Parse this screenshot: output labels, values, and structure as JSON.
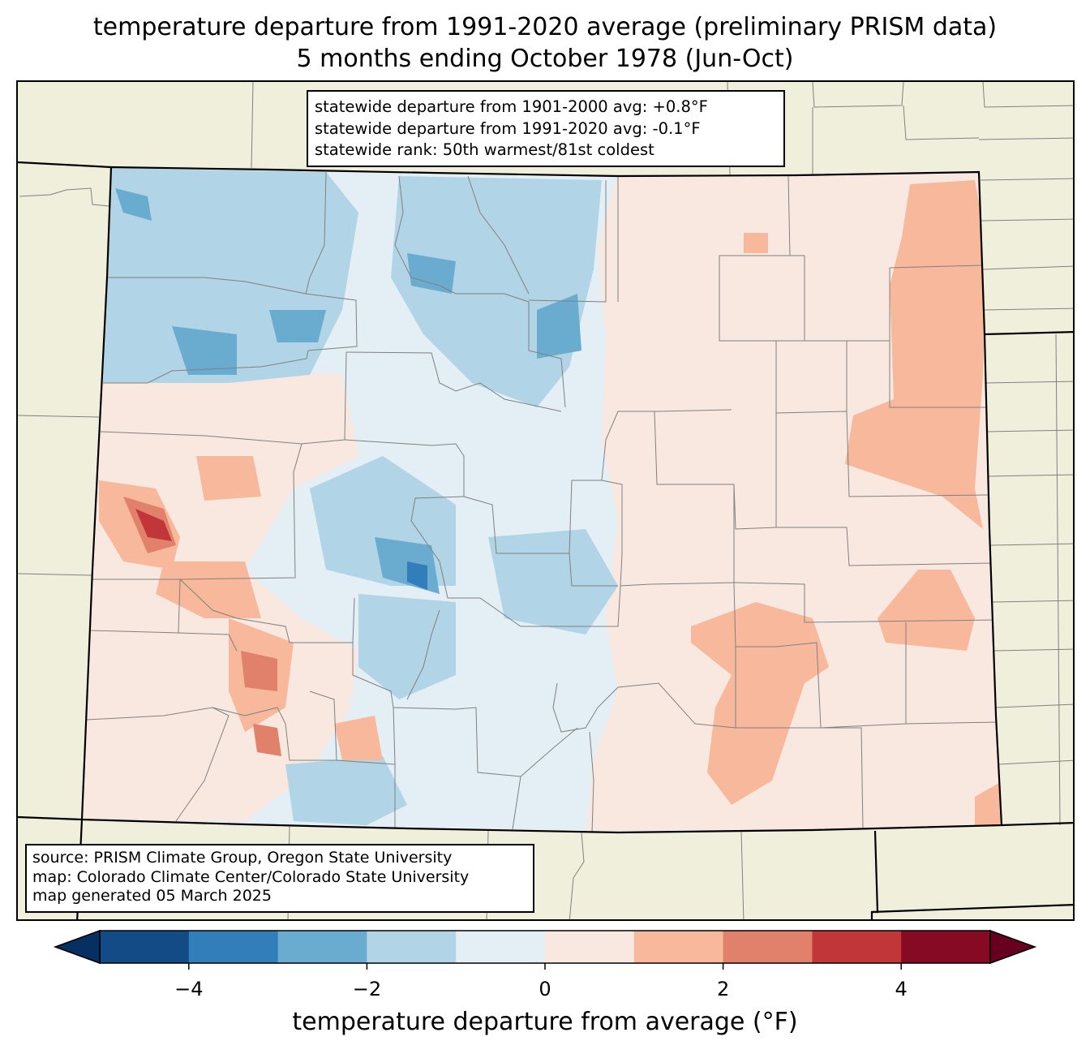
{
  "title": {
    "line1": "temperature departure from 1991-2020 average (preliminary PRISM data)",
    "line2": "5 months ending October 1978 (Jun-Oct)"
  },
  "stats": {
    "line1": "statewide departure from 1901-2000 avg: +0.8°F",
    "line2": "statewide departure from 1991-2020 avg: -0.1°F",
    "line3": "statewide rank: 50th warmest/81st coldest"
  },
  "source": {
    "line1": "source: PRISM Climate Group, Oregon State University",
    "line2": "map: Colorado Climate Center/Colorado State University",
    "line3": "map generated 05 March 2025"
  },
  "colorbar": {
    "label": "temperature departure from average (°F)",
    "ticks": [
      -4,
      -2,
      0,
      2,
      4
    ],
    "tick_labels": [
      "−4",
      "−2",
      "0",
      "2",
      "4"
    ],
    "range": [
      -5,
      5
    ],
    "bins": [
      {
        "from": -5,
        "to": -4,
        "color": "#134b87"
      },
      {
        "from": -4,
        "to": -3,
        "color": "#327eba"
      },
      {
        "from": -3,
        "to": -2,
        "color": "#6aacd0"
      },
      {
        "from": -2,
        "to": -1,
        "color": "#b1d4e7"
      },
      {
        "from": -1,
        "to": 0,
        "color": "#e4eef5"
      },
      {
        "from": 0,
        "to": 1,
        "color": "#f9e8e0"
      },
      {
        "from": 1,
        "to": 2,
        "color": "#f7b89c"
      },
      {
        "from": 2,
        "to": 3,
        "color": "#e1806b"
      },
      {
        "from": 3,
        "to": 4,
        "color": "#c13639"
      },
      {
        "from": 4,
        "to": 5,
        "color": "#870a24"
      }
    ],
    "under_color": "#053061",
    "over_color": "#67001f"
  },
  "map": {
    "land_color": "#f0efdc",
    "county_line_color": "#808080",
    "state_line_color": "#000000"
  }
}
